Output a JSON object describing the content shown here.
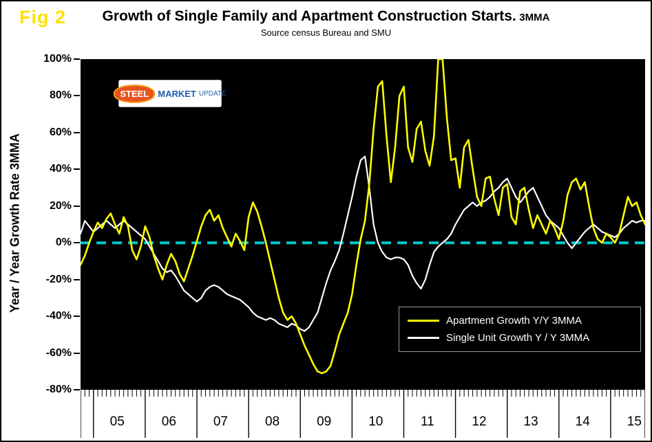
{
  "fig_label": "Fig 2",
  "title": "Growth of Single Family and Apartment Construction Starts.",
  "title_suffix": "3MMA",
  "subtitle": "Source census Bureau and SMU",
  "y_axis_title": "Year / Year Growth Rate 3MMA",
  "logo": {
    "steel": "STEEL",
    "market": "MARKET",
    "update": "UPDATE"
  },
  "colors": {
    "plot_background": "#000000",
    "zero_line": "#00c8c8",
    "apartment_line": "#ffff00",
    "single_unit_line": "#ffffff",
    "fig_label": "#ffe000"
  },
  "chart_data": {
    "type": "line",
    "x_unit": "month",
    "x_start": "2004-10",
    "x_end": "2015-09",
    "x_tick_labels": [
      "05",
      "06",
      "07",
      "08",
      "09",
      "10",
      "11",
      "12",
      "13",
      "14",
      "15"
    ],
    "first_january_index": 3,
    "y_ticks": [
      100,
      80,
      60,
      40,
      20,
      0,
      -20,
      -40,
      -60,
      -80
    ],
    "y_tick_labels": [
      "100%",
      "80%",
      "60%",
      "40%",
      "20%",
      "0%",
      "-20%",
      "-40%",
      "-60%",
      "-80%"
    ],
    "ylim": [
      -80,
      100
    ],
    "grid": false,
    "legend_position": "lower right",
    "zero_line_value": 0,
    "series": [
      {
        "name": "Apartment Growth Y/Y 3MMA",
        "color": "#ffff00",
        "values": [
          -12,
          -7,
          0,
          6,
          11,
          8,
          13,
          16,
          10,
          5,
          14,
          9,
          -4,
          -9,
          -2,
          9,
          3,
          -7,
          -14,
          -20,
          -12,
          -6,
          -10,
          -17,
          -21,
          -14,
          -7,
          1,
          9,
          15,
          18,
          12,
          15,
          8,
          3,
          -2,
          5,
          1,
          -4,
          14,
          22,
          17,
          9,
          0,
          -10,
          -20,
          -30,
          -38,
          -42,
          -40,
          -44,
          -50,
          -56,
          -61,
          -66,
          -70,
          -71,
          -70,
          -67,
          -59,
          -50,
          -44,
          -38,
          -28,
          -12,
          2,
          12,
          32,
          62,
          85,
          88,
          58,
          33,
          52,
          80,
          85,
          52,
          44,
          62,
          66,
          50,
          42,
          58,
          100,
          100,
          68,
          45,
          46,
          30,
          52,
          56,
          40,
          25,
          20,
          35,
          36,
          24,
          15,
          30,
          32,
          14,
          10,
          28,
          30,
          18,
          8,
          15,
          10,
          5,
          12,
          8,
          2,
          12,
          26,
          33,
          35,
          29,
          33,
          20,
          8,
          2,
          0,
          5,
          3,
          0,
          5,
          15,
          25,
          20,
          22,
          15,
          10
        ]
      },
      {
        "name": "Single Unit Growth Y / Y 3MMA",
        "color": "#ffffff",
        "values": [
          5,
          12,
          9,
          6,
          8,
          10,
          12,
          10,
          8,
          10,
          12,
          10,
          8,
          6,
          4,
          2,
          -2,
          -6,
          -10,
          -14,
          -16,
          -15,
          -18,
          -22,
          -26,
          -28,
          -30,
          -32,
          -30,
          -26,
          -24,
          -23,
          -24,
          -26,
          -28,
          -29,
          -30,
          -31,
          -33,
          -35,
          -38,
          -40,
          -41,
          -42,
          -41,
          -42,
          -44,
          -45,
          -46,
          -44,
          -45,
          -47,
          -48,
          -46,
          -42,
          -38,
          -30,
          -22,
          -15,
          -10,
          -4,
          5,
          15,
          25,
          36,
          45,
          47,
          30,
          10,
          0,
          -5,
          -8,
          -9,
          -8,
          -8,
          -9,
          -12,
          -18,
          -22,
          -25,
          -20,
          -12,
          -5,
          -2,
          0,
          2,
          5,
          10,
          14,
          18,
          20,
          22,
          20,
          22,
          23,
          25,
          28,
          30,
          33,
          35,
          30,
          25,
          22,
          25,
          28,
          30,
          25,
          20,
          15,
          12,
          10,
          8,
          4,
          0,
          -3,
          0,
          3,
          6,
          8,
          10,
          8,
          6,
          5,
          4,
          3,
          5,
          8,
          10,
          12,
          11,
          12,
          12
        ]
      }
    ]
  }
}
